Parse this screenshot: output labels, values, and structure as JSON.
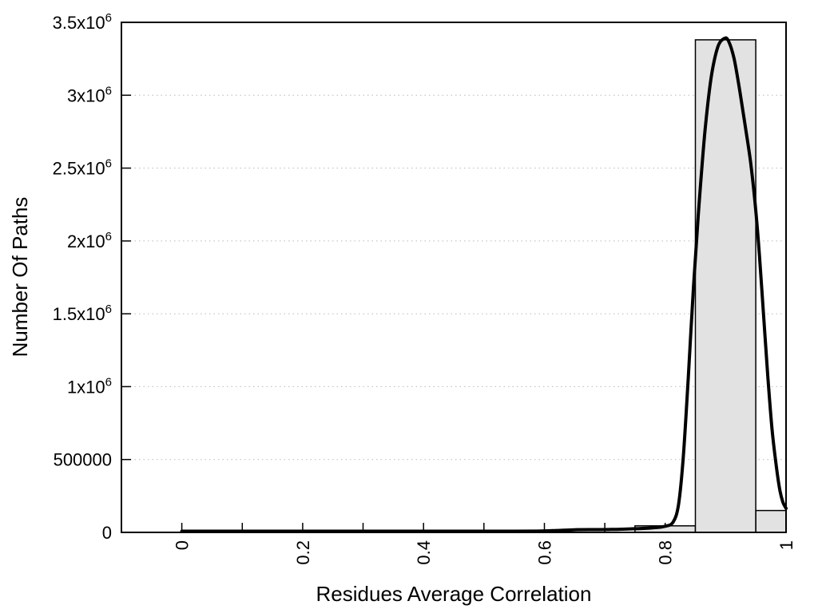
{
  "chart_data": {
    "type": "bar",
    "subtype": "histogram_with_fit_curve",
    "title": "",
    "xlabel": "Residues Average Correlation",
    "ylabel": "Number Of Paths",
    "xlim": [
      -0.1,
      1.0
    ],
    "ylim": [
      0,
      3500000
    ],
    "background_color": "#ffffff",
    "grid": {
      "horizontal_dotted": true,
      "vertical": false,
      "color": "#b9b9b9"
    },
    "x_ticks": [
      {
        "value": 0.0,
        "label": "0"
      },
      {
        "value": 0.1,
        "label": ""
      },
      {
        "value": 0.2,
        "label": "0.2"
      },
      {
        "value": 0.3,
        "label": ""
      },
      {
        "value": 0.4,
        "label": "0.4"
      },
      {
        "value": 0.5,
        "label": ""
      },
      {
        "value": 0.6,
        "label": "0.6"
      },
      {
        "value": 0.7,
        "label": ""
      },
      {
        "value": 0.8,
        "label": "0.8"
      },
      {
        "value": 0.9,
        "label": ""
      },
      {
        "value": 1.0,
        "label": "1"
      }
    ],
    "x_tick_label_rotation_deg": 90,
    "y_ticks": [
      {
        "value": 0,
        "label": "0"
      },
      {
        "value": 500000,
        "label": "500000"
      },
      {
        "value": 1000000,
        "label": "1x10^6"
      },
      {
        "value": 1500000,
        "label": "1.5x10^6"
      },
      {
        "value": 2000000,
        "label": "2x10^6"
      },
      {
        "value": 2500000,
        "label": "2.5x10^6"
      },
      {
        "value": 3000000,
        "label": "3x10^6"
      },
      {
        "value": 3500000,
        "label": "3.5x10^6"
      }
    ],
    "histogram": {
      "fill_color": "#e2e2e2",
      "border_color": "#000000",
      "bins": [
        {
          "x_start": 0.75,
          "x_end": 0.85,
          "count": 45000
        },
        {
          "x_start": 0.85,
          "x_end": 0.95,
          "count": 3380000
        },
        {
          "x_start": 0.95,
          "x_end": 1.0,
          "count": 150000
        }
      ]
    },
    "fit_curve": {
      "color": "#000000",
      "peak": {
        "x": 0.9,
        "y": 3390000
      },
      "points": [
        [
          0.0,
          8000
        ],
        [
          0.05,
          8000
        ],
        [
          0.1,
          8000
        ],
        [
          0.15,
          8000
        ],
        [
          0.2,
          8000
        ],
        [
          0.25,
          8000
        ],
        [
          0.3,
          8000
        ],
        [
          0.35,
          8000
        ],
        [
          0.4,
          8000
        ],
        [
          0.45,
          8000
        ],
        [
          0.5,
          8000
        ],
        [
          0.55,
          8000
        ],
        [
          0.59,
          9000
        ],
        [
          0.62,
          13000
        ],
        [
          0.65,
          18000
        ],
        [
          0.69,
          19000
        ],
        [
          0.72,
          21000
        ],
        [
          0.75,
          25000
        ],
        [
          0.78,
          31000
        ],
        [
          0.8,
          42000
        ],
        [
          0.813,
          70000
        ],
        [
          0.822,
          190000
        ],
        [
          0.83,
          520000
        ],
        [
          0.838,
          1050000
        ],
        [
          0.847,
          1700000
        ],
        [
          0.856,
          2250000
        ],
        [
          0.866,
          2760000
        ],
        [
          0.876,
          3120000
        ],
        [
          0.887,
          3330000
        ],
        [
          0.898,
          3390000
        ],
        [
          0.905,
          3370000
        ],
        [
          0.914,
          3250000
        ],
        [
          0.923,
          3040000
        ],
        [
          0.932,
          2800000
        ],
        [
          0.941,
          2550000
        ],
        [
          0.949,
          2250000
        ],
        [
          0.956,
          1900000
        ],
        [
          0.963,
          1480000
        ],
        [
          0.97,
          1060000
        ],
        [
          0.977,
          700000
        ],
        [
          0.984,
          450000
        ],
        [
          0.99,
          285000
        ],
        [
          0.995,
          205000
        ],
        [
          1.0,
          165000
        ]
      ]
    }
  }
}
